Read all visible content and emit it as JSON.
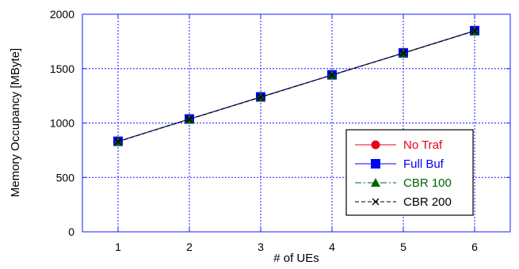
{
  "chart_data": {
    "type": "line",
    "xlabel": "# of UEs",
    "ylabel": "Memory Occupancy [MByte]",
    "xlim": [
      0.5,
      6.5
    ],
    "ylim": [
      0,
      2000
    ],
    "xticks": [
      1,
      2,
      3,
      4,
      5,
      6
    ],
    "yticks": [
      0,
      500,
      1000,
      1500,
      2000
    ],
    "grid": true,
    "legend_position": "bottom-right",
    "x": [
      1,
      2,
      3,
      4,
      5,
      6
    ],
    "series": [
      {
        "name": "No Traf",
        "color": "#e8001c",
        "marker": "circle",
        "line": "solid",
        "values": [
          830,
          1035,
          1237,
          1440,
          1642,
          1846
        ]
      },
      {
        "name": "Full Buf",
        "color": "#0000ff",
        "marker": "square",
        "line": "solid",
        "values": [
          832,
          1037,
          1240,
          1443,
          1645,
          1849
        ]
      },
      {
        "name": "CBR 100",
        "color": "#006600",
        "marker": "triangle",
        "line": "dashdot",
        "values": [
          830,
          1035,
          1238,
          1441,
          1643,
          1847
        ]
      },
      {
        "name": "CBR 200",
        "color": "#000000",
        "marker": "x",
        "line": "dashed",
        "values": [
          829,
          1034,
          1237,
          1440,
          1642,
          1846
        ]
      }
    ]
  }
}
